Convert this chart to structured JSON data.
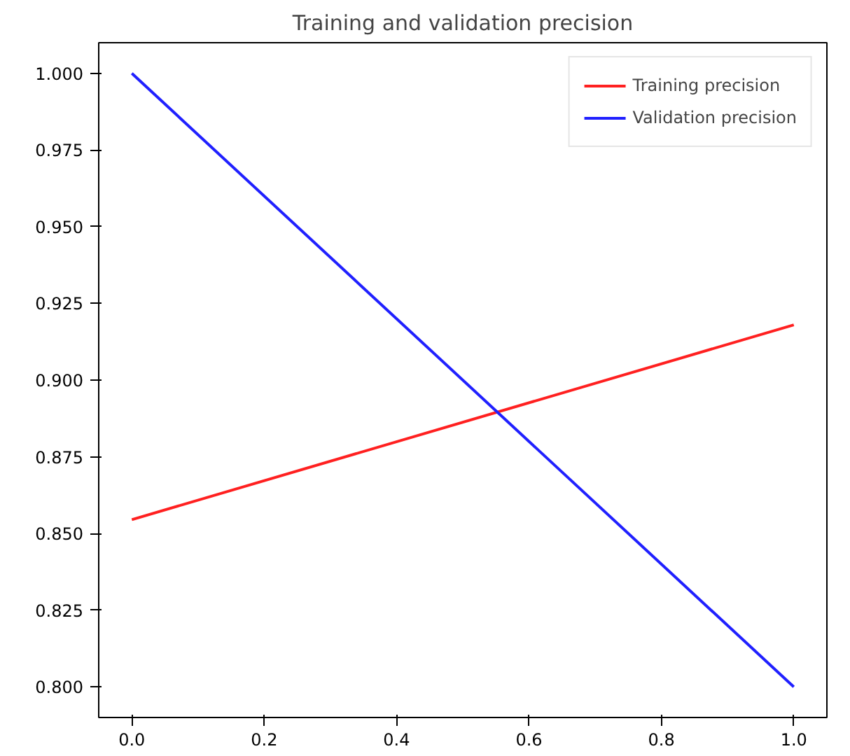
{
  "chart_data": {
    "type": "line",
    "title": "Training and validation precision",
    "x": [
      0,
      1
    ],
    "series": [
      {
        "name": "Training precision",
        "color": "#ff2020",
        "values": [
          0.8545,
          0.918
        ]
      },
      {
        "name": "Validation precision",
        "color": "#2020ff",
        "values": [
          1.0,
          0.8
        ]
      }
    ],
    "xlim": [
      -0.05,
      1.05
    ],
    "ylim": [
      0.79,
      1.01
    ],
    "xticks": [
      {
        "value": 0,
        "label": "0.0"
      },
      {
        "value": 0.2,
        "label": "0.2"
      },
      {
        "value": 0.4,
        "label": "0.4"
      },
      {
        "value": 0.6,
        "label": "0.6"
      },
      {
        "value": 0.8,
        "label": "0.8"
      },
      {
        "value": 1,
        "label": "1.0"
      }
    ],
    "yticks": [
      {
        "value": 0.8,
        "label": "0.800"
      },
      {
        "value": 0.825,
        "label": "0.825"
      },
      {
        "value": 0.85,
        "label": "0.850"
      },
      {
        "value": 0.875,
        "label": "0.875"
      },
      {
        "value": 0.9,
        "label": "0.900"
      },
      {
        "value": 0.925,
        "label": "0.925"
      },
      {
        "value": 0.95,
        "label": "0.950"
      },
      {
        "value": 0.975,
        "label": "0.975"
      },
      {
        "value": 1.0,
        "label": "1.000"
      }
    ],
    "grid": false,
    "legend": "top right",
    "line_style": "solid",
    "marker": "none"
  }
}
